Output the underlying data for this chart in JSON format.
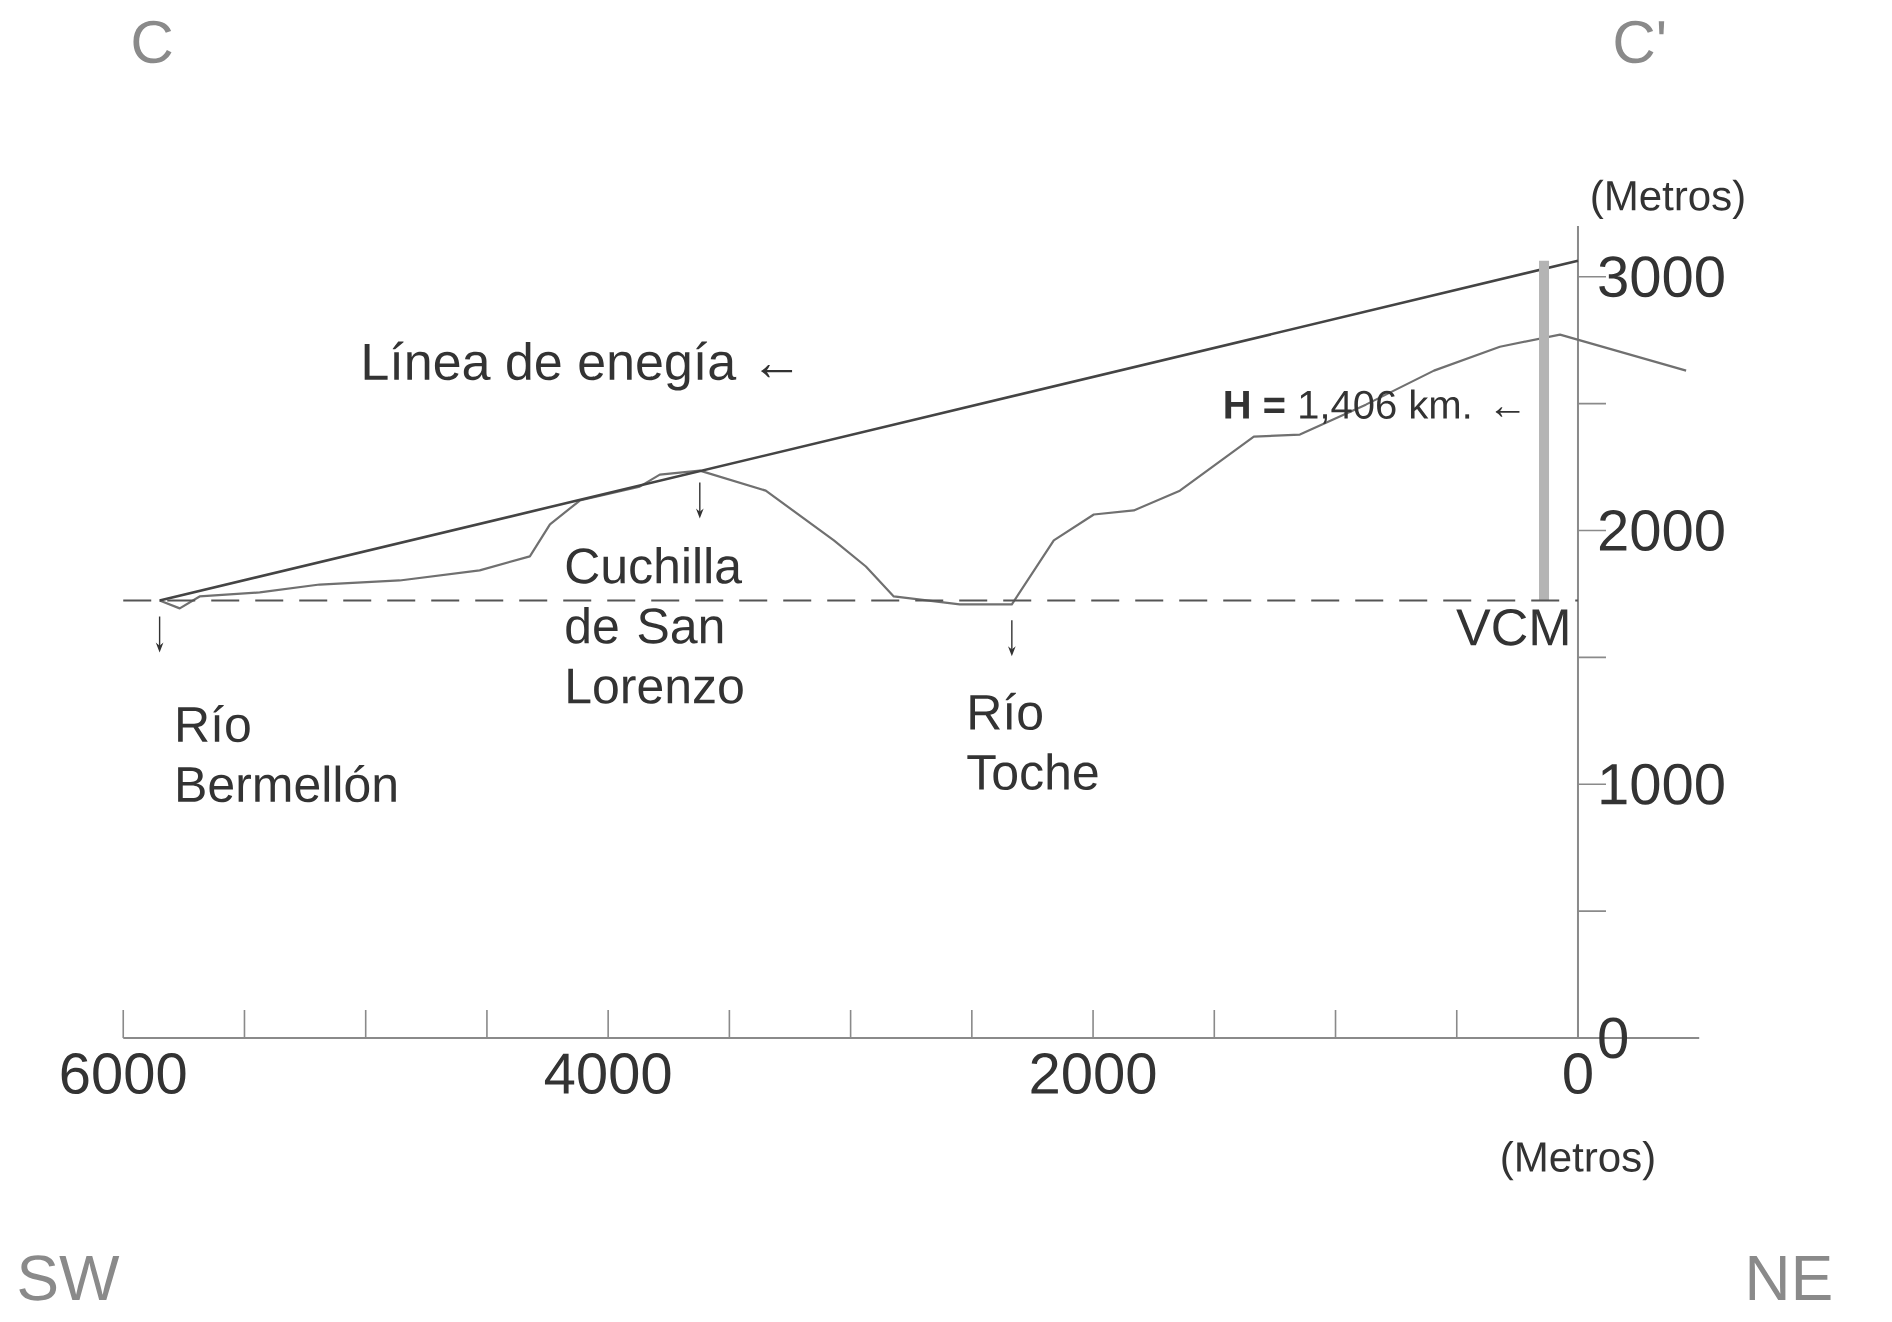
{
  "chart_data": {
    "type": "line",
    "xlabel": "(Metros)",
    "ylabel": "(Metros)",
    "xlim": [
      6000,
      -500
    ],
    "xticks": [
      6000,
      {
        "value": 5500,
        "label": null
      },
      {
        "value": 5000,
        "label": null
      },
      {
        "value": 4500,
        "label": null
      },
      4000,
      {
        "value": 3500,
        "label": null
      },
      {
        "value": 3000,
        "label": null
      },
      {
        "value": 2500,
        "label": null
      },
      2000,
      {
        "value": 1500,
        "label": null
      },
      {
        "value": 1000,
        "label": null
      },
      {
        "value": 500,
        "label": null
      },
      0
    ],
    "ylim": [
      0,
      3200
    ],
    "yticks": [
      0,
      {
        "value": 500,
        "label": null
      },
      1000,
      {
        "value": 1500,
        "label": null
      },
      2000,
      {
        "value": 2500,
        "label": null
      },
      3000
    ],
    "series": [
      {
        "color": "#707070",
        "x": [
          5850,
          5767,
          5685,
          5437,
          5190,
          4860,
          4530,
          4323,
          4240,
          4117,
          3870,
          3787,
          3622,
          3350,
          3069,
          2937,
          2822,
          2550,
          2335,
          2162,
          1997,
          1832,
          1642,
          1337,
          1147,
          875,
          594,
          322,
          74,
          -446
        ],
        "values": [
          1724,
          1693,
          1740,
          1756,
          1787,
          1803,
          1843,
          1898,
          2024,
          2118,
          2173,
          2220,
          2236,
          2157,
          1961,
          1858,
          1740,
          1709,
          1709,
          1961,
          2063,
          2079,
          2157,
          2370,
          2378,
          2496,
          2630,
          2724,
          2772,
          2630
        ]
      },
      {
        "color": "#444444",
        "x": [
          5850,
          0
        ],
        "values": [
          1724,
          3063
        ]
      },
      {
        "color": "#b4b4b4",
        "x": [
          140,
          140
        ],
        "values": [
          1724,
          3063
        ]
      }
    ],
    "ref_lines": [
      {
        "axis": "y",
        "value": 1724,
        "label": "VCM",
        "line_style": "dashed",
        "color": "#555555"
      }
    ],
    "annotations": [
      {
        "text": "Río Bermellón",
        "x": 5850,
        "y": 1724
      },
      {
        "text": "Cuchilla de San Lorenzo",
        "x": 3622,
        "y": 2236
      },
      {
        "text": "Río Toche",
        "x": 2335,
        "y": 1709
      },
      {
        "text": "**H =** 1,406 km. ←",
        "x": 140,
        "y": 2488
      },
      "Línea de enegía ←",
      "C",
      "C'",
      "SW",
      "NE"
    ]
  }
}
